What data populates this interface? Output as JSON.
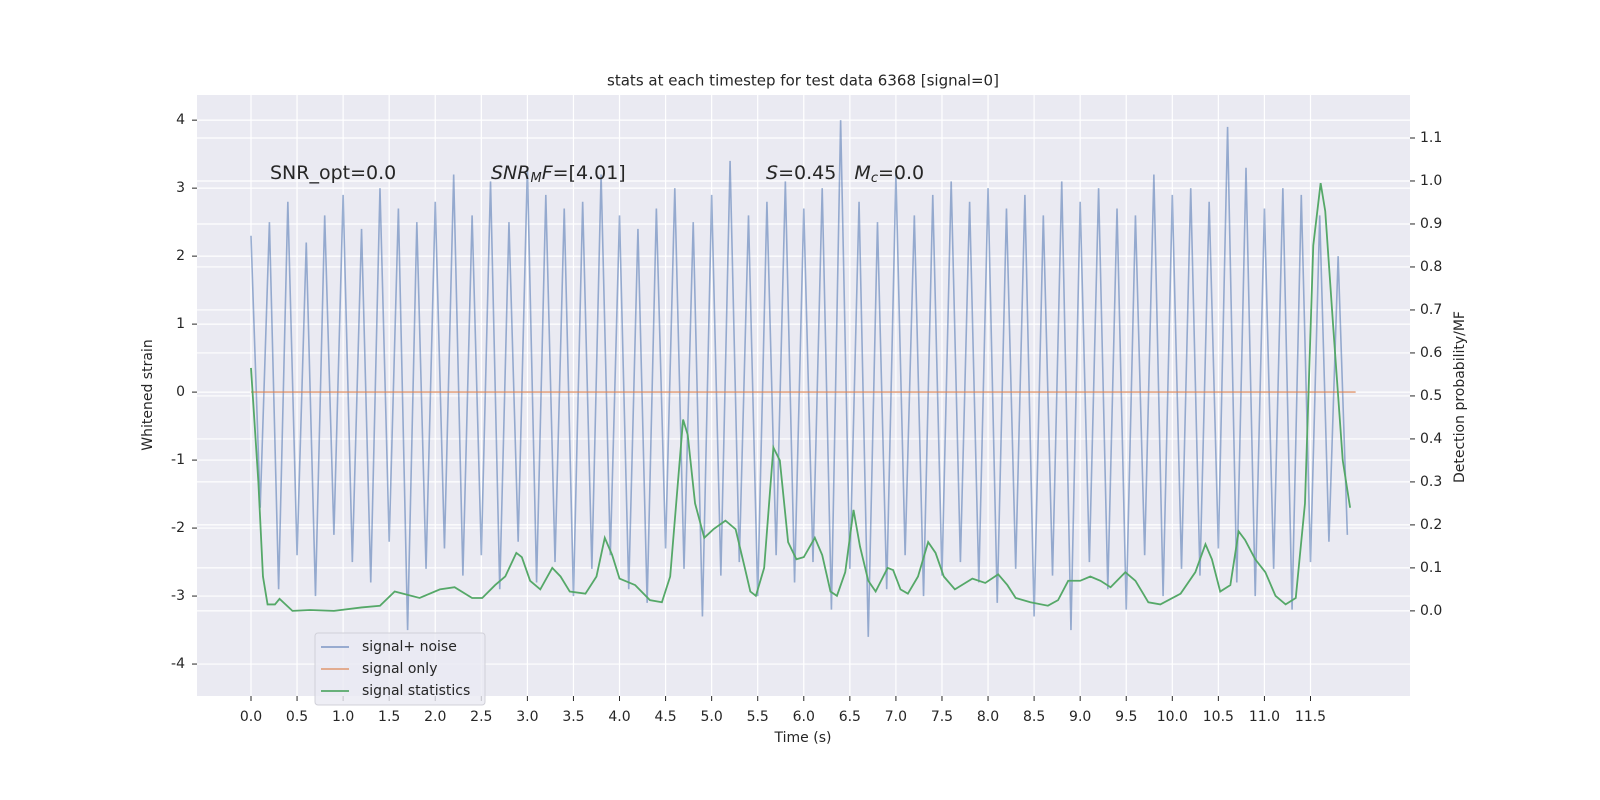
{
  "chart_data": {
    "type": "line",
    "title": "stats at each timestep for test data 6368 [signal=0]",
    "xlabel": "Time (s)",
    "ylabel": "Whitened strain",
    "y2label": "Detection probability/MF",
    "xlim": [
      -0.586,
      12.58
    ],
    "ylim": [
      -4.47,
      4.37
    ],
    "y2lim": [
      -0.198,
      1.2
    ],
    "xticks": [
      {
        "value": 0,
        "label": "0.0"
      },
      0.5,
      {
        "value": 1,
        "label": "1.0"
      },
      1.5,
      {
        "value": 2,
        "label": "2.0"
      },
      2.5,
      {
        "value": 3,
        "label": "3.0"
      },
      3.5,
      {
        "value": 4,
        "label": "4.0"
      },
      4.5,
      {
        "value": 5,
        "label": "5.0"
      },
      5.5,
      {
        "value": 6,
        "label": "6.0"
      },
      6.5,
      {
        "value": 7,
        "label": "7.0"
      },
      7.5,
      {
        "value": 8,
        "label": "8.0"
      },
      8.5,
      {
        "value": 9,
        "label": "9.0"
      },
      9.5,
      {
        "value": 10,
        "label": "10.0"
      },
      10.5,
      {
        "value": 11,
        "label": "11.0"
      },
      11.5
    ],
    "yticks": [
      -4,
      -3,
      -2,
      -1,
      0,
      1,
      2,
      3,
      4
    ],
    "y2ticks": [
      {
        "value": 0,
        "label": "0.0"
      },
      0.1,
      0.2,
      0.3,
      0.4,
      0.5,
      0.6,
      0.7,
      0.8,
      0.9,
      {
        "value": 1,
        "label": "1.0"
      },
      1.1
    ],
    "grid": true,
    "legend": "lower left",
    "annotations": [
      [
        {
          "text": "SNR_opt=0.0"
        }
      ],
      [
        {
          "text": "SNR",
          "style": "italic"
        },
        {
          "text": "M",
          "style": "sub"
        },
        {
          "text": "F",
          "style": "italic"
        },
        {
          "text": "=[4.01]"
        }
      ],
      [
        {
          "text": "S",
          "style": "italic"
        },
        {
          "text": "=0.45   "
        },
        {
          "text": "M",
          "style": "italic"
        },
        {
          "text": "c",
          "style": "sub"
        },
        {
          "text": "=0.0"
        }
      ]
    ],
    "series": [
      {
        "name": "signal+ noise",
        "color": "#4c72b0",
        "x": [
          0.0,
          0.1,
          0.2,
          0.3,
          0.4,
          0.5,
          0.6,
          0.7,
          0.8,
          0.9,
          1.0,
          1.1,
          1.2,
          1.3,
          1.4,
          1.5,
          1.6,
          1.7,
          1.8,
          1.9,
          2.0,
          2.1,
          2.2,
          2.3,
          2.4,
          2.5,
          2.6,
          2.7,
          2.8,
          2.9,
          3.0,
          3.1,
          3.2,
          3.3,
          3.4,
          3.5,
          3.6,
          3.7,
          3.8,
          3.9,
          4.0,
          4.1,
          4.2,
          4.3,
          4.4,
          4.5,
          4.6,
          4.7,
          4.8,
          4.9,
          5.0,
          5.1,
          5.2,
          5.3,
          5.4,
          5.5,
          5.6,
          5.7,
          5.8,
          5.9,
          6.0,
          6.1,
          6.2,
          6.3,
          6.4,
          6.5,
          6.6,
          6.7,
          6.8,
          6.9,
          7.0,
          7.1,
          7.2,
          7.3,
          7.4,
          7.5,
          7.6,
          7.7,
          7.8,
          7.9,
          8.0,
          8.1,
          8.2,
          8.3,
          8.4,
          8.5,
          8.6,
          8.7,
          8.8,
          8.9,
          9.0,
          9.1,
          9.2,
          9.3,
          9.4,
          9.5,
          9.6,
          9.7,
          9.8,
          9.9,
          10.0,
          10.1,
          10.2,
          10.3,
          10.4,
          10.5,
          10.6,
          10.7,
          10.8,
          10.9,
          11.0,
          11.1,
          11.2,
          11.3,
          11.4,
          11.5,
          11.6,
          11.7,
          11.8,
          11.9
        ],
        "values": [
          2.3,
          -1.7,
          2.5,
          -2.9,
          2.8,
          -2.4,
          2.2,
          -3.0,
          2.6,
          -2.1,
          2.9,
          -2.5,
          2.4,
          -2.8,
          3.0,
          -2.2,
          2.7,
          -3.5,
          2.5,
          -2.6,
          2.8,
          -2.3,
          3.2,
          -2.7,
          2.6,
          -2.4,
          3.1,
          -2.9,
          2.5,
          -2.2,
          3.3,
          -2.8,
          2.9,
          -2.5,
          2.7,
          -3.0,
          2.8,
          -2.6,
          3.2,
          -2.4,
          2.6,
          -2.9,
          2.4,
          -3.1,
          2.7,
          -2.3,
          3.0,
          -2.6,
          2.5,
          -3.3,
          2.9,
          -2.7,
          3.4,
          -2.5,
          2.6,
          -3.0,
          2.8,
          -2.4,
          3.1,
          -2.8,
          2.7,
          -2.5,
          3.0,
          -3.2,
          4.0,
          -2.6,
          2.8,
          -3.6,
          2.5,
          -2.9,
          3.2,
          -2.4,
          2.6,
          -3.0,
          2.9,
          -2.7,
          3.1,
          -2.5,
          2.8,
          -2.8,
          3.0,
          -3.1,
          2.7,
          -2.6,
          2.9,
          -3.3,
          2.6,
          -2.7,
          3.1,
          -3.5,
          2.8,
          -2.5,
          3.0,
          -2.9,
          2.7,
          -3.2,
          2.6,
          -2.4,
          3.2,
          -3.0,
          2.9,
          -2.6,
          3.0,
          -2.7,
          2.8,
          -2.3,
          3.9,
          -2.8,
          3.3,
          -3.0,
          2.7,
          -2.6,
          3.0,
          -3.2,
          2.9,
          -2.5,
          2.6,
          -2.2,
          2.0,
          -2.1
        ]
      },
      {
        "name": "signal only",
        "color": "#dd8452",
        "x": [
          0.0,
          11.99
        ],
        "values": [
          0,
          0
        ]
      },
      {
        "name": "signal statistics",
        "color": "#55a868",
        "axis": "y2",
        "x": [
          0.0,
          0.08,
          0.13,
          0.18,
          0.26,
          0.31,
          0.45,
          0.64,
          0.9,
          1.2,
          1.4,
          1.56,
          1.83,
          2.05,
          2.21,
          2.4,
          2.51,
          2.65,
          2.76,
          2.88,
          2.94,
          3.03,
          3.14,
          3.27,
          3.36,
          3.46,
          3.63,
          3.75,
          3.84,
          3.92,
          4.0,
          4.17,
          4.33,
          4.46,
          4.55,
          4.69,
          4.74,
          4.82,
          4.92,
          5.02,
          5.15,
          5.26,
          5.36,
          5.42,
          5.48,
          5.57,
          5.67,
          5.74,
          5.83,
          5.92,
          6.0,
          6.12,
          6.2,
          6.29,
          6.36,
          6.45,
          6.54,
          6.61,
          6.7,
          6.78,
          6.91,
          6.97,
          7.05,
          7.13,
          7.24,
          7.35,
          7.43,
          7.52,
          7.64,
          7.83,
          7.97,
          8.11,
          8.21,
          8.3,
          8.46,
          8.65,
          8.76,
          8.87,
          9.0,
          9.11,
          9.22,
          9.33,
          9.49,
          9.6,
          9.74,
          9.87,
          10.09,
          10.25,
          10.36,
          10.43,
          10.52,
          10.63,
          10.72,
          10.79,
          10.9,
          11.01,
          11.12,
          11.23,
          11.34,
          11.44,
          11.53,
          11.61,
          11.66,
          11.75,
          11.85,
          11.93
        ],
        "values": [
          0.565,
          0.3,
          0.08,
          0.015,
          0.015,
          0.028,
          0.0,
          0.002,
          0.0,
          0.008,
          0.012,
          0.045,
          0.03,
          0.05,
          0.055,
          0.03,
          0.03,
          0.06,
          0.08,
          0.135,
          0.125,
          0.07,
          0.05,
          0.1,
          0.08,
          0.045,
          0.04,
          0.08,
          0.17,
          0.13,
          0.075,
          0.06,
          0.025,
          0.02,
          0.08,
          0.445,
          0.41,
          0.25,
          0.17,
          0.19,
          0.21,
          0.19,
          0.1,
          0.045,
          0.035,
          0.1,
          0.38,
          0.35,
          0.16,
          0.12,
          0.125,
          0.17,
          0.13,
          0.045,
          0.035,
          0.09,
          0.235,
          0.15,
          0.07,
          0.045,
          0.1,
          0.095,
          0.05,
          0.04,
          0.08,
          0.16,
          0.135,
          0.08,
          0.05,
          0.075,
          0.065,
          0.085,
          0.06,
          0.03,
          0.02,
          0.012,
          0.025,
          0.07,
          0.07,
          0.08,
          0.07,
          0.055,
          0.09,
          0.07,
          0.02,
          0.015,
          0.04,
          0.09,
          0.155,
          0.12,
          0.045,
          0.06,
          0.185,
          0.165,
          0.12,
          0.09,
          0.035,
          0.015,
          0.03,
          0.25,
          0.85,
          0.995,
          0.93,
          0.65,
          0.35,
          0.24
        ]
      }
    ]
  }
}
